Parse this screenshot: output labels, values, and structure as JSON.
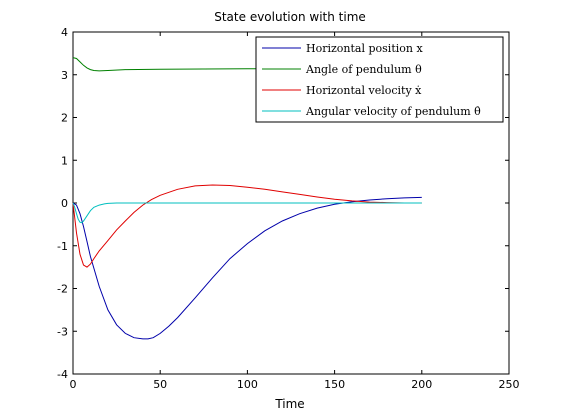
{
  "chart_data": {
    "type": "line",
    "title": "State evolution with time",
    "xlabel": "Time",
    "ylabel": "",
    "xlim": [
      0,
      250
    ],
    "ylim": [
      -4,
      4
    ],
    "xticks": [
      "0",
      "50",
      "100",
      "150",
      "200",
      "250"
    ],
    "yticks": [
      "-4",
      "-3",
      "-2",
      "-1",
      "0",
      "1",
      "2",
      "3",
      "4"
    ],
    "grid": false,
    "legend_position": "top-right",
    "series": [
      {
        "name": "Horizontal position x",
        "color": "#0000aa",
        "x": [
          0,
          2,
          4,
          6,
          8,
          10,
          15,
          20,
          25,
          30,
          35,
          40,
          43,
          46,
          50,
          55,
          60,
          70,
          80,
          90,
          100,
          110,
          120,
          130,
          140,
          150,
          155,
          160,
          170,
          180,
          190,
          200
        ],
        "y": [
          0,
          -0.05,
          -0.25,
          -0.55,
          -0.9,
          -1.25,
          -1.95,
          -2.5,
          -2.85,
          -3.05,
          -3.15,
          -3.18,
          -3.18,
          -3.15,
          -3.05,
          -2.88,
          -2.68,
          -2.22,
          -1.75,
          -1.3,
          -0.95,
          -0.65,
          -0.42,
          -0.25,
          -0.12,
          -0.03,
          0.0,
          0.03,
          0.07,
          0.1,
          0.12,
          0.13
        ]
      },
      {
        "name": "Angle of pendulum θ",
        "color": "#008000",
        "x": [
          0,
          2,
          4,
          6,
          8,
          10,
          12,
          15,
          20,
          30,
          50,
          100,
          150,
          200
        ],
        "y": [
          3.4,
          3.38,
          3.3,
          3.22,
          3.16,
          3.12,
          3.1,
          3.09,
          3.1,
          3.12,
          3.13,
          3.14,
          3.14,
          3.14
        ]
      },
      {
        "name": "Horizontal velocity ẋ",
        "color": "#e00000",
        "x": [
          0,
          2,
          4,
          6,
          8,
          10,
          12,
          15,
          20,
          25,
          30,
          35,
          40,
          45,
          50,
          60,
          70,
          80,
          90,
          100,
          110,
          120,
          130,
          140,
          150,
          160,
          170,
          180,
          190,
          200
        ],
        "y": [
          0,
          -0.7,
          -1.2,
          -1.45,
          -1.5,
          -1.43,
          -1.3,
          -1.12,
          -0.88,
          -0.63,
          -0.42,
          -0.22,
          -0.05,
          0.08,
          0.18,
          0.32,
          0.4,
          0.42,
          0.41,
          0.37,
          0.32,
          0.26,
          0.2,
          0.14,
          0.09,
          0.05,
          0.02,
          0.01,
          0.0,
          0.0
        ]
      },
      {
        "name": "Angular velocity of pendulum θ̇",
        "color": "#00bfbf",
        "x": [
          0,
          1,
          2,
          3,
          4,
          5,
          6,
          8,
          10,
          12,
          15,
          18,
          20,
          25,
          30,
          40,
          50,
          100,
          150,
          200
        ],
        "y": [
          0,
          -0.1,
          -0.25,
          -0.38,
          -0.45,
          -0.46,
          -0.42,
          -0.3,
          -0.18,
          -0.1,
          -0.05,
          -0.02,
          -0.01,
          0.0,
          0.0,
          0.0,
          0.0,
          0.0,
          0.0,
          0.0
        ]
      }
    ]
  }
}
